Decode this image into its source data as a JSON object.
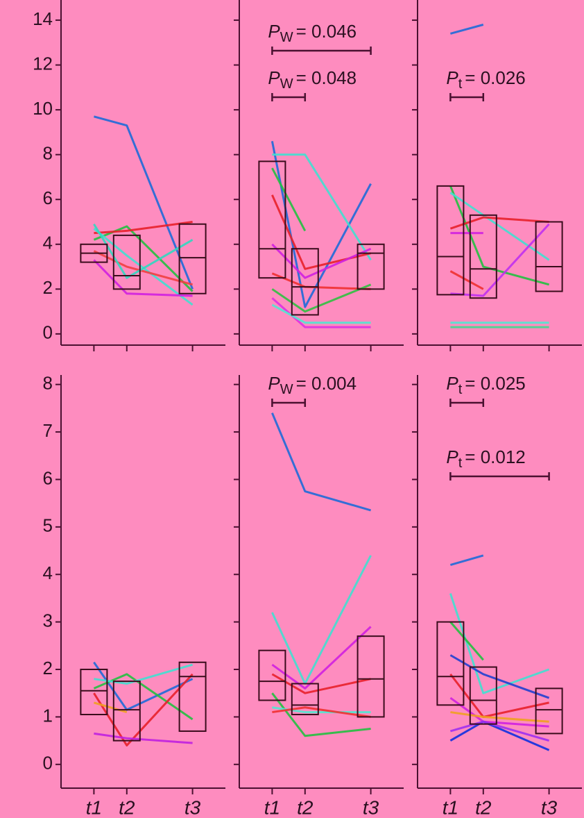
{
  "chart_data": [
    {
      "type": "box-lines",
      "x": [
        1,
        2,
        4
      ],
      "xlim": [
        0,
        5
      ],
      "xticks": [
        {
          "value": 1,
          "label": "t1"
        },
        {
          "value": 2,
          "label": "t2"
        },
        {
          "value": 4,
          "label": "t3"
        }
      ],
      "xtick_labels": false,
      "ylim": [
        -0.5,
        14.9
      ],
      "yticks": [
        0,
        2,
        4,
        6,
        8,
        10,
        12,
        14
      ],
      "ytick_labels": true,
      "box_color": "#3a0c1c",
      "boxes": [
        {
          "q1": 3.2,
          "median": 3.6,
          "q3": 4.0
        },
        {
          "q1": 2.0,
          "median": 2.6,
          "q3": 4.4
        },
        {
          "q1": 1.8,
          "median": 3.4,
          "q3": 4.9
        }
      ],
      "series": [
        {
          "color": "#1e6ad8",
          "values": [
            9.7,
            9.3,
            2.0
          ]
        },
        {
          "color": "#22c040",
          "values": [
            4.2,
            4.8,
            1.9
          ]
        },
        {
          "color": "#e8202a",
          "values": [
            4.5,
            4.6,
            5.0
          ]
        },
        {
          "color": "#40e0d0",
          "values": [
            4.7,
            3.5,
            1.3
          ]
        },
        {
          "color": "#d020e0",
          "values": [
            3.3,
            1.8,
            1.7
          ]
        },
        {
          "color": "#f04040",
          "values": [
            3.7,
            3.0,
            2.2
          ]
        },
        {
          "color": "#30d8c0",
          "values": [
            4.9,
            2.5,
            4.2
          ]
        }
      ],
      "annotations": []
    },
    {
      "type": "box-lines",
      "x": [
        1,
        2,
        4
      ],
      "xlim": [
        0,
        5
      ],
      "xticks": [
        {
          "value": 1,
          "label": "t1"
        },
        {
          "value": 2,
          "label": "t2"
        },
        {
          "value": 4,
          "label": "t3"
        }
      ],
      "xtick_labels": false,
      "ylim": [
        -0.5,
        14.9
      ],
      "yticks": [
        0,
        2,
        4,
        6,
        8,
        10,
        12,
        14
      ],
      "ytick_labels": false,
      "box_color": "#3a0c1c",
      "boxes": [
        {
          "q1": 2.5,
          "median": 3.8,
          "q3": 7.7
        },
        {
          "q1": 0.85,
          "median": 2.1,
          "q3": 3.8
        },
        {
          "q1": 2.0,
          "median": 3.6,
          "q3": 4.0
        }
      ],
      "series": [
        {
          "color": "#1e6ad8",
          "values": [
            8.6,
            1.2,
            6.7
          ]
        },
        {
          "color": "#40e0d0",
          "values": [
            8.0,
            8.0,
            3.3
          ]
        },
        {
          "color": "#22c040",
          "values": [
            7.4,
            4.6,
            null
          ]
        },
        {
          "color": "#e8202a",
          "values": [
            6.2,
            2.9,
            3.6
          ]
        },
        {
          "color": "#d020e0",
          "values": [
            4.0,
            2.5,
            3.8
          ]
        },
        {
          "color": "#f03030",
          "values": [
            2.7,
            2.1,
            2.0
          ]
        },
        {
          "color": "#30c040",
          "values": [
            2.0,
            1.0,
            2.2
          ]
        },
        {
          "color": "#e030e0",
          "values": [
            1.6,
            0.3,
            0.3
          ]
        },
        {
          "color": "#50e8d0",
          "values": [
            1.3,
            0.5,
            0.5
          ]
        }
      ],
      "annotations": [
        {
          "symbol": "P",
          "sub": "W",
          "text": "= 0.046",
          "span": [
            1,
            4
          ]
        },
        {
          "symbol": "P",
          "sub": "W",
          "text": "= 0.048",
          "span": [
            1,
            2
          ]
        }
      ]
    },
    {
      "type": "box-lines",
      "x": [
        1,
        2,
        4
      ],
      "xlim": [
        0,
        5
      ],
      "xticks": [
        {
          "value": 1,
          "label": "t1"
        },
        {
          "value": 2,
          "label": "t2"
        },
        {
          "value": 4,
          "label": "t3"
        }
      ],
      "xtick_labels": false,
      "ylim": [
        -0.5,
        14.9
      ],
      "yticks": [
        0,
        2,
        4,
        6,
        8,
        10,
        12,
        14
      ],
      "ytick_labels": false,
      "box_color": "#3a0c1c",
      "boxes": [
        {
          "q1": 1.75,
          "median": 3.45,
          "q3": 6.6
        },
        {
          "q1": 1.6,
          "median": 2.9,
          "q3": 5.3
        },
        {
          "q1": 1.9,
          "median": 3.0,
          "q3": 5.0
        }
      ],
      "series": [
        {
          "color": "#1e6ad8",
          "values": [
            13.4,
            13.8,
            null
          ]
        },
        {
          "color": "#22c040",
          "values": [
            6.6,
            3.0,
            2.2
          ]
        },
        {
          "color": "#40e0d0",
          "values": [
            6.3,
            5.3,
            3.3
          ]
        },
        {
          "color": "#e8202a",
          "values": [
            4.7,
            5.2,
            5.0
          ]
        },
        {
          "color": "#d020e0",
          "values": [
            4.5,
            4.5,
            null
          ]
        },
        {
          "color": "#f03030",
          "values": [
            2.8,
            2.0,
            null
          ]
        },
        {
          "color": "#c030f0",
          "values": [
            1.8,
            1.7,
            4.9
          ]
        },
        {
          "color": "#50e8d0",
          "values": [
            0.5,
            0.5,
            0.5
          ]
        },
        {
          "color": "#40d890",
          "values": [
            0.3,
            0.3,
            0.3
          ]
        }
      ],
      "annotations": [
        {
          "symbol": "P",
          "sub": "t",
          "text": "= 0.026",
          "span": [
            1,
            2
          ]
        }
      ]
    },
    {
      "type": "box-lines",
      "x": [
        1,
        2,
        4
      ],
      "xlim": [
        0,
        5
      ],
      "xticks": [
        {
          "value": 1,
          "label": "t1"
        },
        {
          "value": 2,
          "label": "t2"
        },
        {
          "value": 4,
          "label": "t3"
        }
      ],
      "xtick_labels": true,
      "ylim": [
        -0.5,
        8.2
      ],
      "yticks": [
        0,
        1,
        2,
        3,
        4,
        5,
        6,
        7,
        8
      ],
      "ytick_labels": true,
      "box_color": "#3a0c1c",
      "boxes": [
        {
          "q1": 1.05,
          "median": 1.55,
          "q3": 2.0
        },
        {
          "q1": 0.5,
          "median": 1.15,
          "q3": 1.75
        },
        {
          "q1": 0.7,
          "median": 1.85,
          "q3": 2.15
        }
      ],
      "series": [
        {
          "color": "#1e6ad8",
          "values": [
            2.15,
            1.15,
            1.8
          ]
        },
        {
          "color": "#22c040",
          "values": [
            1.6,
            1.9,
            0.95
          ]
        },
        {
          "color": "#e8202a",
          "values": [
            1.5,
            0.4,
            1.9
          ]
        },
        {
          "color": "#40e0d0",
          "values": [
            1.8,
            1.7,
            2.1
          ]
        },
        {
          "color": "#c020e0",
          "values": [
            0.65,
            0.55,
            0.45
          ]
        },
        {
          "color": "#f0a020",
          "values": [
            1.3,
            1.1,
            null
          ]
        }
      ],
      "annotations": []
    },
    {
      "type": "box-lines",
      "x": [
        1,
        2,
        4
      ],
      "xlim": [
        0,
        5
      ],
      "xticks": [
        {
          "value": 1,
          "label": "t1"
        },
        {
          "value": 2,
          "label": "t2"
        },
        {
          "value": 4,
          "label": "t3"
        }
      ],
      "xtick_labels": true,
      "ylim": [
        -0.5,
        8.2
      ],
      "yticks": [
        0,
        1,
        2,
        3,
        4,
        5,
        6,
        7,
        8
      ],
      "ytick_labels": false,
      "box_color": "#3a0c1c",
      "boxes": [
        {
          "q1": 1.35,
          "median": 1.75,
          "q3": 2.4
        },
        {
          "q1": 1.05,
          "median": 1.25,
          "q3": 1.7
        },
        {
          "q1": 1.0,
          "median": 1.8,
          "q3": 2.7
        }
      ],
      "series": [
        {
          "color": "#1e6ad8",
          "values": [
            7.4,
            5.75,
            5.35
          ]
        },
        {
          "color": "#40e0d0",
          "values": [
            3.2,
            1.7,
            4.4
          ]
        },
        {
          "color": "#d020e0",
          "values": [
            2.1,
            1.6,
            2.9
          ]
        },
        {
          "color": "#e8202a",
          "values": [
            1.9,
            1.5,
            1.8
          ]
        },
        {
          "color": "#22c040",
          "values": [
            1.5,
            0.6,
            0.75
          ]
        },
        {
          "color": "#50e8d0",
          "values": [
            1.2,
            1.1,
            1.1
          ]
        },
        {
          "color": "#f03030",
          "values": [
            1.1,
            1.2,
            1.0
          ]
        }
      ],
      "annotations": [
        {
          "symbol": "P",
          "sub": "W",
          "text": "= 0.004",
          "span": [
            1,
            2
          ]
        }
      ]
    },
    {
      "type": "box-lines",
      "x": [
        1,
        2,
        4
      ],
      "xlim": [
        0,
        5
      ],
      "xticks": [
        {
          "value": 1,
          "label": "t1"
        },
        {
          "value": 2,
          "label": "t2"
        },
        {
          "value": 4,
          "label": "t3"
        }
      ],
      "xtick_labels": true,
      "ylim": [
        -0.5,
        8.2
      ],
      "yticks": [
        0,
        1,
        2,
        3,
        4,
        5,
        6,
        7,
        8
      ],
      "ytick_labels": false,
      "box_color": "#3a0c1c",
      "boxes": [
        {
          "q1": 1.25,
          "median": 1.85,
          "q3": 3.0
        },
        {
          "q1": 0.85,
          "median": 1.35,
          "q3": 2.05
        },
        {
          "q1": 0.65,
          "median": 1.15,
          "q3": 1.6
        }
      ],
      "series": [
        {
          "color": "#1e6ad8",
          "values": [
            4.2,
            4.4,
            null
          ]
        },
        {
          "color": "#40e0d0",
          "values": [
            3.6,
            1.5,
            2.0
          ]
        },
        {
          "color": "#22c040",
          "values": [
            3.0,
            2.2,
            null
          ]
        },
        {
          "color": "#2040d0",
          "values": [
            2.3,
            1.9,
            1.4
          ]
        },
        {
          "color": "#e8202a",
          "values": [
            1.9,
            1.0,
            1.3
          ]
        },
        {
          "color": "#d020e0",
          "values": [
            1.4,
            0.9,
            0.8
          ]
        },
        {
          "color": "#f0a020",
          "values": [
            1.1,
            1.0,
            0.9
          ]
        },
        {
          "color": "#1030e0",
          "values": [
            0.5,
            0.9,
            0.3
          ]
        },
        {
          "color": "#a030f0",
          "values": [
            0.7,
            0.9,
            0.5
          ]
        }
      ],
      "annotations": [
        {
          "symbol": "P",
          "sub": "t",
          "text": "= 0.025",
          "span": [
            1,
            2
          ]
        },
        {
          "symbol": "P",
          "sub": "t",
          "text": "= 0.012",
          "span": [
            1,
            4
          ]
        }
      ]
    }
  ]
}
